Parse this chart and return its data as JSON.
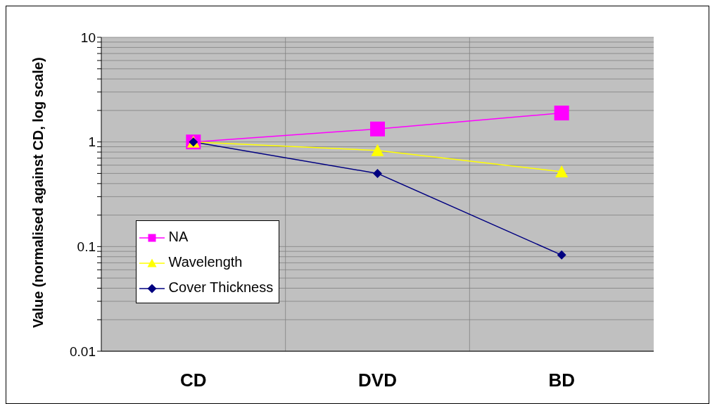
{
  "chart_data": {
    "type": "line",
    "ylabel": "Value (normalised against CD, log scale)",
    "categories": [
      "CD",
      "DVD",
      "BD"
    ],
    "series": [
      {
        "name": "NA",
        "color": "#ff00ff",
        "marker": "square",
        "values": [
          1,
          1.33,
          1.89
        ]
      },
      {
        "name": "Wavelength",
        "color": "#ffff00",
        "marker": "triangle",
        "values": [
          1,
          0.83,
          0.52
        ]
      },
      {
        "name": "Cover Thickness",
        "color": "#000080",
        "marker": "diamond",
        "values": [
          1,
          0.5,
          0.083
        ]
      }
    ],
    "log": "y",
    "ylim": [
      0.01,
      10
    ],
    "yticks": [
      0.01,
      {
        "value": 0.02,
        "label": null
      },
      {
        "value": 0.03,
        "label": null
      },
      {
        "value": 0.04,
        "label": null
      },
      {
        "value": 0.05,
        "label": null
      },
      {
        "value": 0.06,
        "label": null
      },
      {
        "value": 0.07,
        "label": null
      },
      {
        "value": 0.08,
        "label": null
      },
      {
        "value": 0.09,
        "label": null
      },
      0.1,
      {
        "value": 0.2,
        "label": null
      },
      {
        "value": 0.3,
        "label": null
      },
      {
        "value": 0.4,
        "label": null
      },
      {
        "value": 0.5,
        "label": null
      },
      {
        "value": 0.6,
        "label": null
      },
      {
        "value": 0.7,
        "label": null
      },
      {
        "value": 0.8,
        "label": null
      },
      {
        "value": 0.9,
        "label": null
      },
      1,
      {
        "value": 2,
        "label": null
      },
      {
        "value": 3,
        "label": null
      },
      {
        "value": 4,
        "label": null
      },
      {
        "value": 5,
        "label": null
      },
      {
        "value": 6,
        "label": null
      },
      {
        "value": 7,
        "label": null
      },
      {
        "value": 8,
        "label": null
      },
      {
        "value": 9,
        "label": null
      },
      10
    ],
    "grid": true,
    "legend": "left",
    "line_style": "solid"
  }
}
